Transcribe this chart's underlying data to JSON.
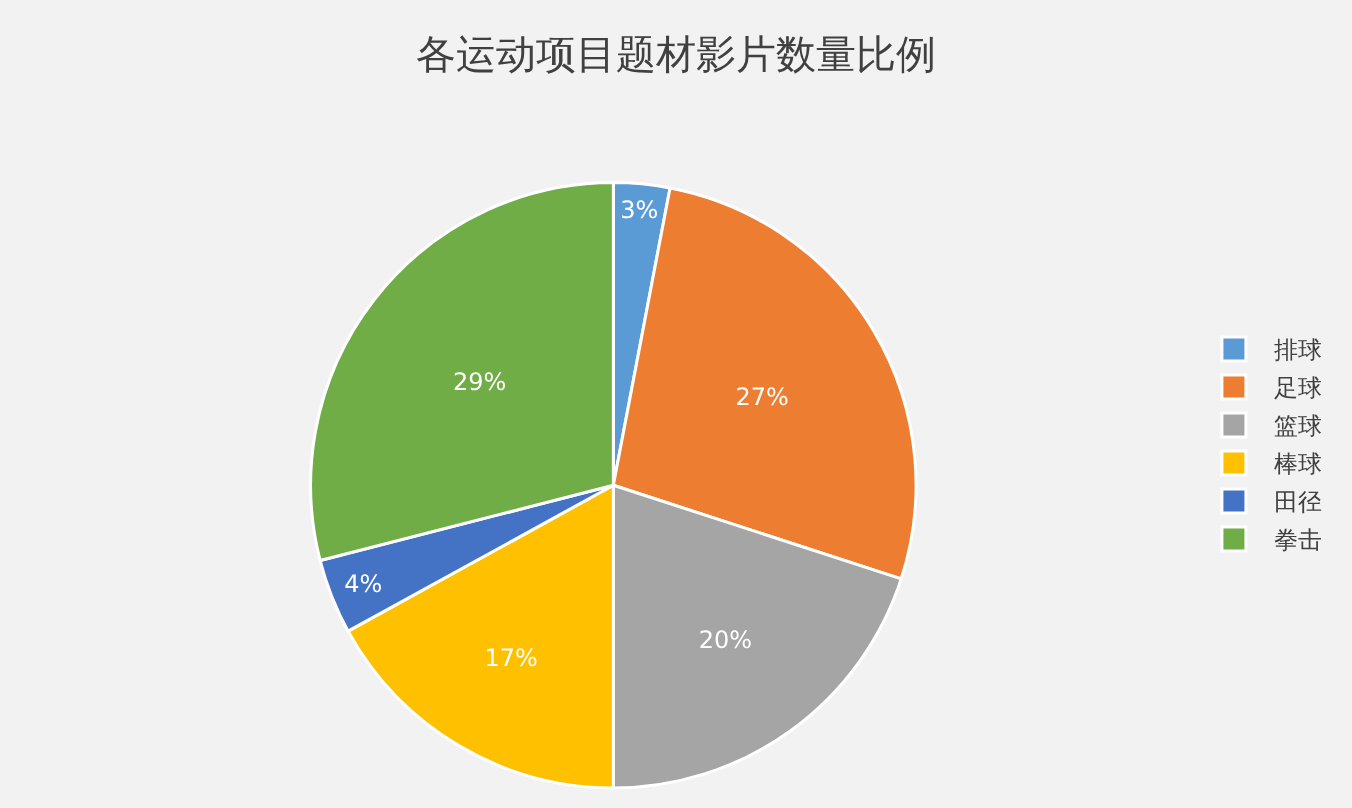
{
  "chart_data": {
    "type": "pie",
    "title": "各运动项目题材影片数量比例",
    "categories": [
      "排球",
      "足球",
      "篮球",
      "棒球",
      "田径",
      "拳击"
    ],
    "values": [
      3,
      27,
      20,
      17,
      4,
      29
    ],
    "value_labels": [
      "3%",
      "27%",
      "20%",
      "17%",
      "4%",
      "29%"
    ],
    "colors": [
      "#5b9bd5",
      "#ed7d31",
      "#a5a5a5",
      "#ffc000",
      "#4472c4",
      "#70ad47"
    ],
    "legend": "right"
  }
}
